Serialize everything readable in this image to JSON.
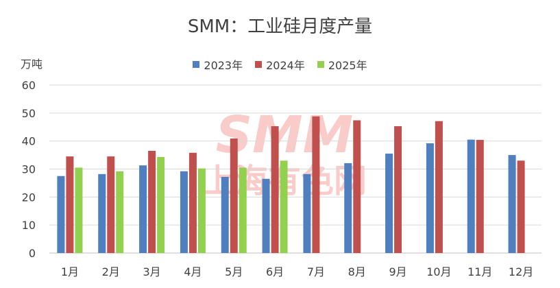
{
  "chart_data": {
    "type": "bar",
    "title": "SMM：工业硅月度产量",
    "ylabel": "万吨",
    "xlabel": "",
    "ylim": [
      0,
      60
    ],
    "yticks": [
      0,
      10,
      20,
      30,
      40,
      50,
      60
    ],
    "categories": [
      "1月",
      "2月",
      "3月",
      "4月",
      "5月",
      "6月",
      "7月",
      "8月",
      "9月",
      "10月",
      "11月",
      "12月"
    ],
    "series": [
      {
        "name": "2023年",
        "color": "#4F7FBF",
        "values": [
          27.5,
          28.2,
          31.3,
          29.2,
          27.2,
          26.5,
          28.2,
          32.1,
          35.5,
          39.2,
          40.5,
          35.0
        ]
      },
      {
        "name": "2024年",
        "color": "#C0504D",
        "values": [
          34.5,
          34.5,
          36.5,
          35.8,
          40.9,
          45.3,
          48.8,
          47.4,
          45.3,
          47.1,
          40.4,
          33.0
        ]
      },
      {
        "name": "2025年",
        "color": "#92D050",
        "values": [
          30.5,
          29.2,
          34.3,
          30.2,
          30.5,
          33.0,
          null,
          null,
          null,
          null,
          null,
          null
        ]
      }
    ],
    "legend_position": "top-center",
    "grid": true
  },
  "watermark": {
    "logo_text": "SMM",
    "sub_text": "上海有色网",
    "color": "#E8342D"
  }
}
